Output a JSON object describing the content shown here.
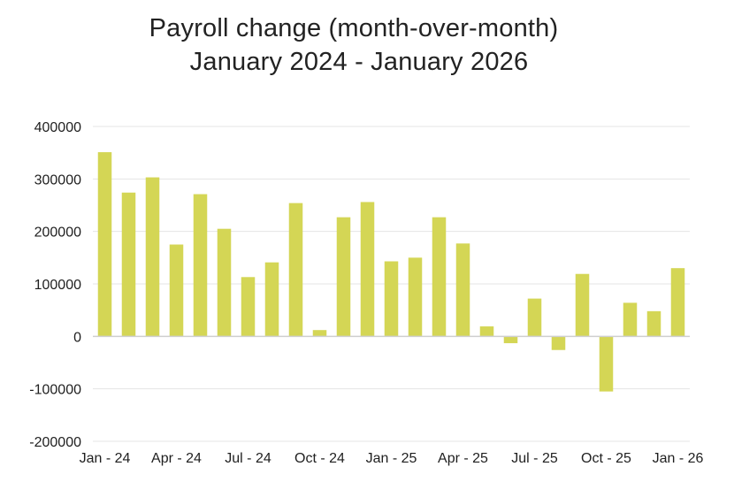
{
  "chart_data": {
    "type": "bar",
    "title": "Payroll change (month-over-month)",
    "subtitle": "January 2024 - January 2026",
    "xlabel": "",
    "ylabel": "",
    "ylim": [
      -200000,
      400000
    ],
    "yticks": [
      400000,
      300000,
      200000,
      100000,
      0,
      -100000,
      -200000
    ],
    "ytick_labels": [
      "400000",
      "300000",
      "200000",
      "100000",
      "0",
      "-100000",
      "-200000"
    ],
    "xtick_labels": [
      "Jan - 24",
      "Apr - 24",
      "Jul - 24",
      "Oct - 24",
      "Jan - 25",
      "Apr - 25",
      "Jul - 25",
      "Oct - 25",
      "Jan - 26"
    ],
    "grid": true,
    "legend": null,
    "bar_color": "#d4d655",
    "categories": [
      "Jan-24",
      "Feb-24",
      "Mar-24",
      "Apr-24",
      "May-24",
      "Jun-24",
      "Jul-24",
      "Aug-24",
      "Sep-24",
      "Oct-24",
      "Nov-24",
      "Dec-24",
      "Jan-25",
      "Feb-25",
      "Mar-25",
      "Apr-25",
      "May-25",
      "Jun-25",
      "Jul-25",
      "Aug-25",
      "Sep-25",
      "Oct-25",
      "Nov-25",
      "Dec-25",
      "Jan-26"
    ],
    "values": [
      351000,
      274000,
      303000,
      175000,
      271000,
      205000,
      113000,
      141000,
      254000,
      12000,
      227000,
      256000,
      143000,
      150000,
      227000,
      177000,
      19000,
      -13000,
      72000,
      -26000,
      119000,
      -105000,
      64000,
      48000,
      130000
    ]
  }
}
